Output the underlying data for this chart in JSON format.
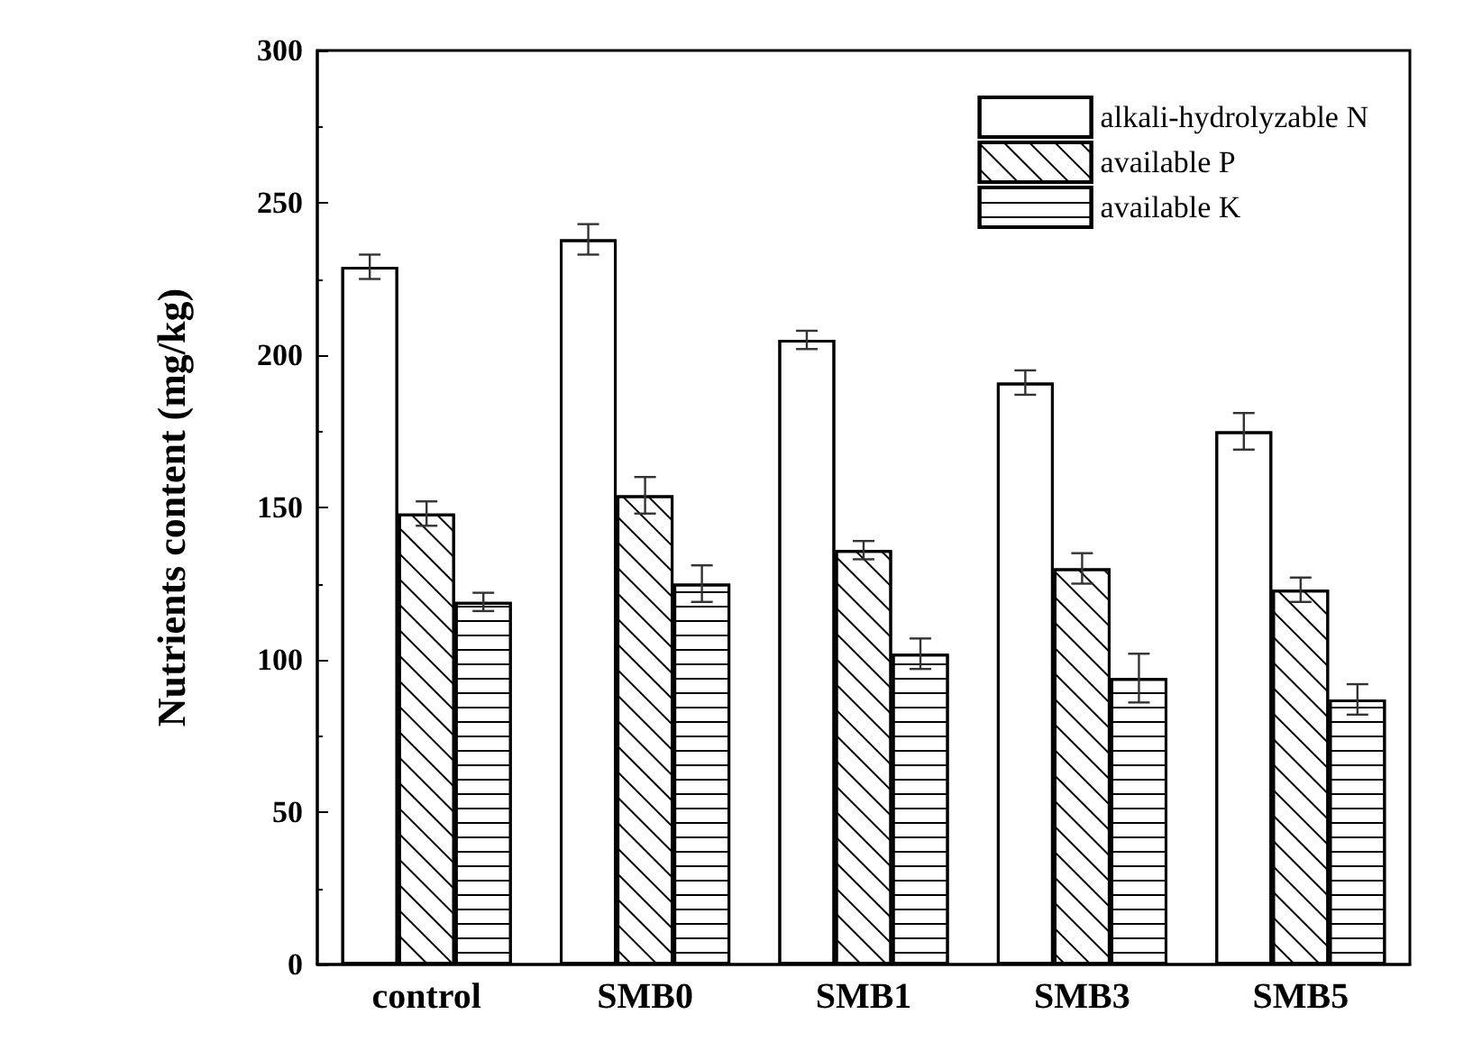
{
  "chart_data": {
    "type": "bar",
    "ylabel": "Nutrients content (mg/kg)",
    "categories": [
      "control",
      "SMB0",
      "SMB1",
      "SMB3",
      "SMB5"
    ],
    "series": [
      {
        "name": "alkali-hydrolyzable N",
        "color": "#ffffff",
        "values": [
          229,
          238,
          205,
          191,
          175
        ],
        "errors": [
          4,
          5,
          3,
          4,
          6
        ]
      },
      {
        "name": "available P",
        "color": "#ffffff",
        "values": [
          148,
          154,
          136,
          130,
          123
        ],
        "errors": [
          4,
          6,
          3,
          5,
          4
        ]
      },
      {
        "name": "available K",
        "color": "#ffffff",
        "values": [
          119,
          125,
          102,
          94,
          87
        ],
        "errors": [
          3,
          6,
          5,
          8,
          5
        ]
      }
    ],
    "ylim": [
      0,
      300
    ],
    "yticks": [
      0,
      50,
      100,
      150,
      200,
      250,
      300
    ],
    "grid": false,
    "legend": "top right"
  }
}
